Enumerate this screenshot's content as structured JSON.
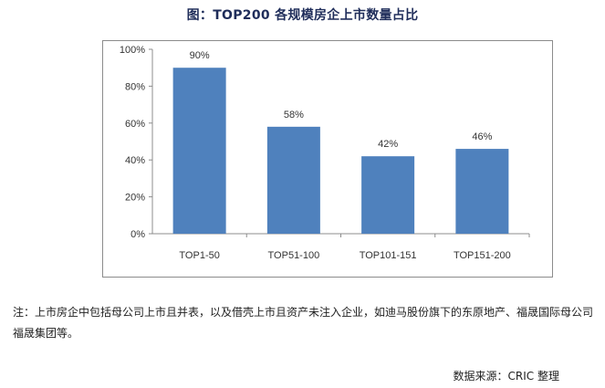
{
  "chart_data": {
    "type": "bar",
    "title": "图：TOP200 各规模房企上市数量占比",
    "categories": [
      "TOP1-50",
      "TOP51-100",
      "TOP101-151",
      "TOP151-200"
    ],
    "values": [
      90,
      58,
      42,
      46
    ],
    "data_labels": [
      "90%",
      "58%",
      "42%",
      "46%"
    ],
    "y_ticks": [
      0,
      20,
      40,
      60,
      80,
      100
    ],
    "y_tick_labels": [
      "0%",
      "20%",
      "40%",
      "60%",
      "80%",
      "100%"
    ],
    "ylim": [
      0,
      100
    ],
    "bar_color": "#4f81bd",
    "grid": false,
    "legend": "none"
  },
  "note": "注：上市房企中包括母公司上市且并表，以及借壳上市且资产未注入企业，如迪马股份旗下的东原地产、福晟国际母公司福晟集团等。",
  "source": "数据来源：CRIC 整理"
}
